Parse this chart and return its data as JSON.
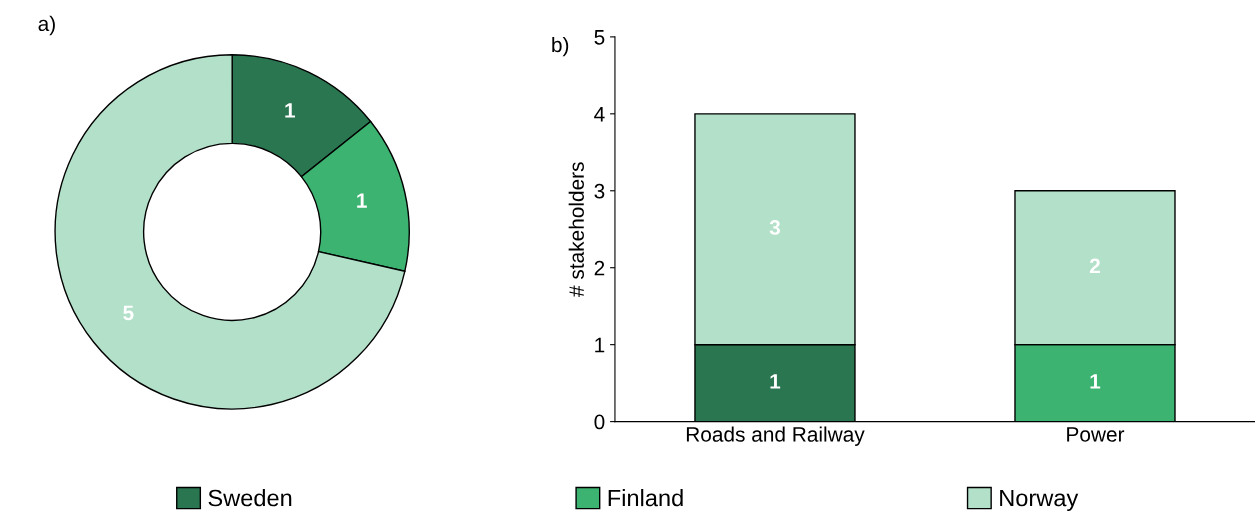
{
  "chart_data": [
    {
      "type": "donut",
      "title": "a)",
      "categories": [
        "Sweden",
        "Finland",
        "Norway"
      ],
      "values": [
        1,
        1,
        5
      ],
      "colors": [
        "#2a7650",
        "#3cb371",
        "#b3e0c9"
      ],
      "data_labels": true,
      "legend": "bottom"
    },
    {
      "type": "bar",
      "title": "b)",
      "stacked": true,
      "categories": [
        "Roads and Railway",
        "Power"
      ],
      "ylabel": "# stakeholders",
      "ylim": [
        0,
        5
      ],
      "yticks": [
        0,
        1,
        2,
        3,
        4,
        5
      ],
      "grid": false,
      "series": [
        {
          "color": "#2a7650",
          "values": [
            1,
            0
          ],
          "value_labels": [
            "1",
            null
          ]
        },
        {
          "color": "#3cb371",
          "values": [
            0,
            1
          ],
          "value_labels": [
            null,
            "1"
          ]
        },
        {
          "color": "#b3e0c9",
          "values": [
            3,
            2
          ],
          "value_labels": [
            "3",
            "2"
          ]
        }
      ]
    }
  ]
}
